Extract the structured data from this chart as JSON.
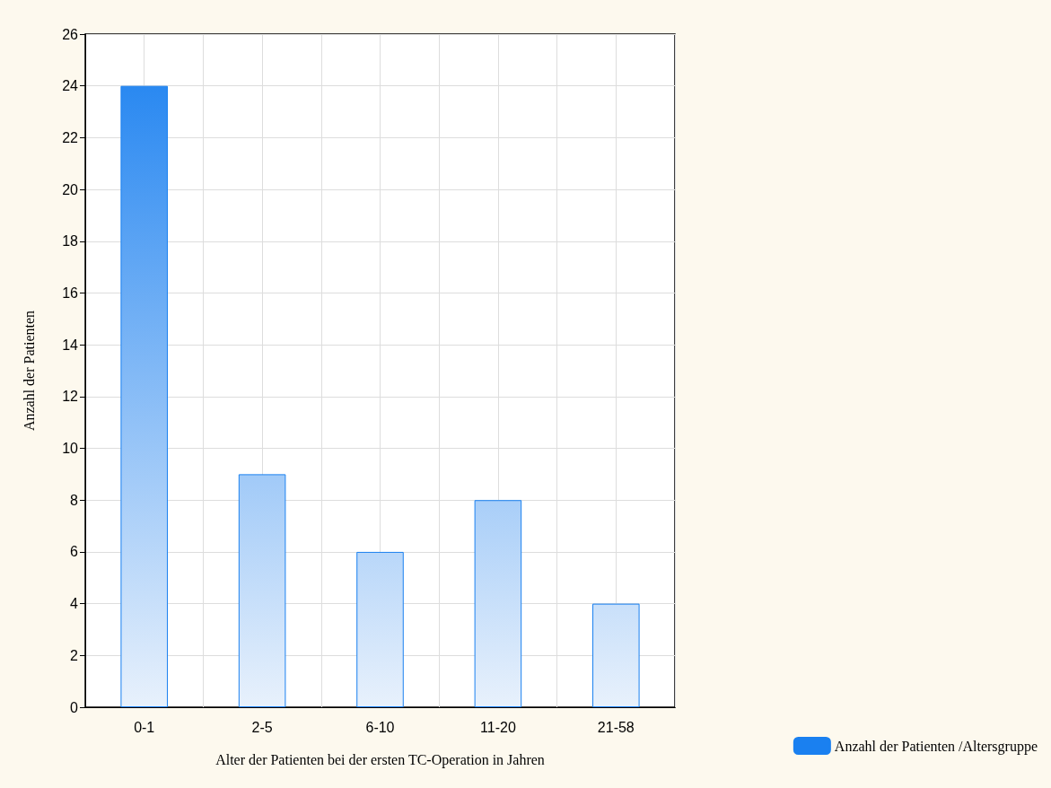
{
  "chart_data": {
    "type": "bar",
    "xlabel": "Alter der Patienten bei der ersten TC-Operation in Jahren",
    "ylabel": "Anzahl der Patienten",
    "categories": [
      "0-1",
      "2-5",
      "6-10",
      "11-20",
      "21-58"
    ],
    "series": [
      {
        "name": "Anzahl der Patienten /Altersgruppe",
        "color": "#1a80f0",
        "values": [
          24,
          9,
          6,
          8,
          4
        ]
      }
    ],
    "ylim": [
      0,
      26
    ],
    "yticks": [
      0,
      2,
      4,
      6,
      8,
      10,
      12,
      14,
      16,
      18,
      20,
      22,
      24,
      26
    ],
    "grid": true,
    "legend": "bottom right"
  }
}
